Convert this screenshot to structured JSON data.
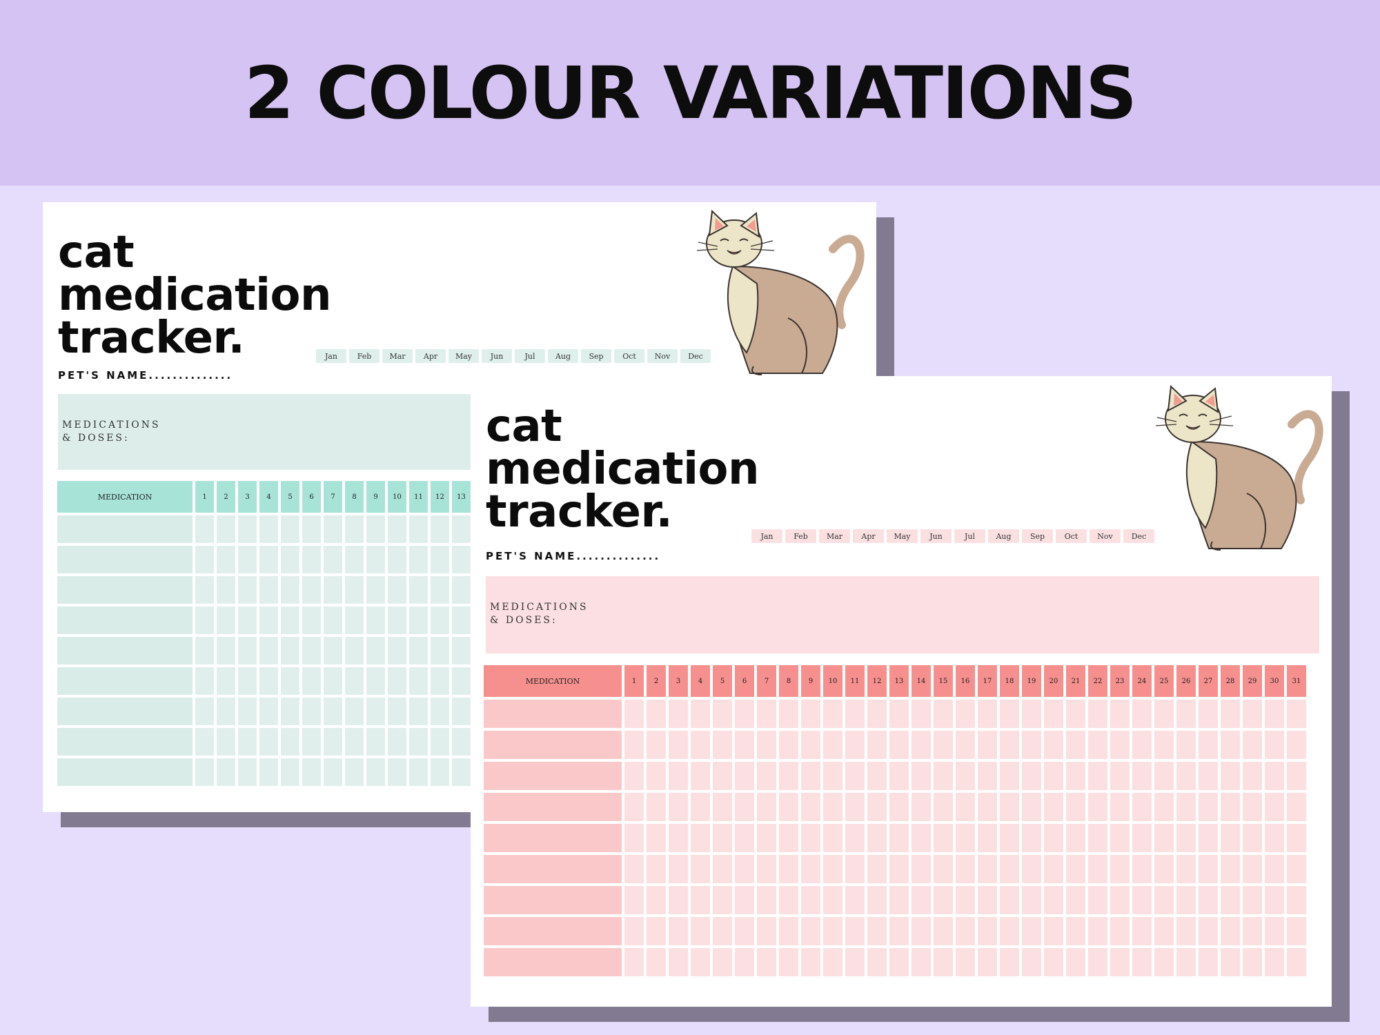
{
  "banner": {
    "title": "2 COLOUR VARIATIONS"
  },
  "sheets": [
    {
      "variant": "mint",
      "colors": {
        "header": "#a8e3d8",
        "panel": "#ddeeea",
        "cell": "#e1efec",
        "month": "#dff0ec"
      },
      "title_line1": "cat",
      "title_line2": "medication",
      "title_line3": "tracker.",
      "pet_name_label": "PET'S NAME..............",
      "months": [
        "Jan",
        "Feb",
        "Mar",
        "Apr",
        "May",
        "Jun",
        "Jul",
        "Aug",
        "Sep",
        "Oct",
        "Nov",
        "Dec"
      ],
      "meds_line1": "MEDICATIONS",
      "meds_line2": "& DOSES:",
      "medication_header": "MEDICATION",
      "visible_days": [
        "1",
        "2",
        "3",
        "4",
        "5",
        "6",
        "7",
        "8",
        "9",
        "10",
        "11",
        "12",
        "13"
      ]
    },
    {
      "variant": "pink",
      "colors": {
        "header": "#f6908e",
        "panel": "#fbdfe2",
        "cell": "#fbdfe1",
        "month": "#fbe0e2"
      },
      "title_line1": "cat",
      "title_line2": "medication",
      "title_line3": "tracker.",
      "pet_name_label": "PET'S NAME..............",
      "months": [
        "Jan",
        "Feb",
        "Mar",
        "Apr",
        "May",
        "Jun",
        "Jul",
        "Aug",
        "Sep",
        "Oct",
        "Nov",
        "Dec"
      ],
      "meds_line1": "MEDICATIONS",
      "meds_line2": "& DOSES:",
      "medication_header": "MEDICATION",
      "days": [
        "1",
        "2",
        "3",
        "4",
        "5",
        "6",
        "7",
        "8",
        "9",
        "10",
        "11",
        "12",
        "13",
        "14",
        "15",
        "16",
        "17",
        "18",
        "19",
        "20",
        "21",
        "22",
        "23",
        "24",
        "25",
        "26",
        "27",
        "28",
        "29",
        "30",
        "31"
      ]
    }
  ],
  "icons": {
    "cat_illustration": "sitting-cat-icon"
  }
}
